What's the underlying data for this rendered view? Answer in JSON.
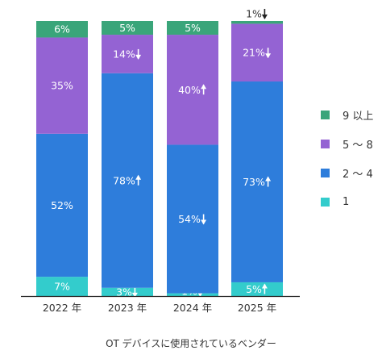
{
  "chart_data": {
    "type": "bar",
    "stacked": true,
    "categories": [
      "2022 年",
      "2023 年",
      "2024 年",
      "2025 年"
    ],
    "xlabel": "OT デバイスに使用されているベンダー",
    "ylabel": "",
    "ylim": [
      0,
      100
    ],
    "legend_position": "right",
    "series": [
      {
        "name": "1",
        "color": "#33cccc",
        "values": [
          7,
          3,
          1,
          5
        ],
        "labels": [
          "7%",
          "3%",
          "1%",
          "5%"
        ],
        "trend": [
          "",
          "down",
          "down",
          "up"
        ]
      },
      {
        "name": "2 ～ 4",
        "color": "#2e7ddb",
        "values": [
          52,
          78,
          54,
          73
        ],
        "labels": [
          "52%",
          "78%",
          "54%",
          "73%"
        ],
        "trend": [
          "",
          "up",
          "down",
          "up"
        ]
      },
      {
        "name": "5 ～ 8",
        "color": "#9463d3",
        "values": [
          35,
          14,
          40,
          21
        ],
        "labels": [
          "35%",
          "14%",
          "40%",
          "21%"
        ],
        "trend": [
          "",
          "down",
          "up",
          "down"
        ]
      },
      {
        "name": "9 以上",
        "color": "#3aa57a",
        "values": [
          6,
          5,
          5,
          1
        ],
        "labels": [
          "6%",
          "5%",
          "5%",
          "1%"
        ],
        "trend": [
          "",
          "",
          "",
          "down"
        ]
      }
    ]
  }
}
